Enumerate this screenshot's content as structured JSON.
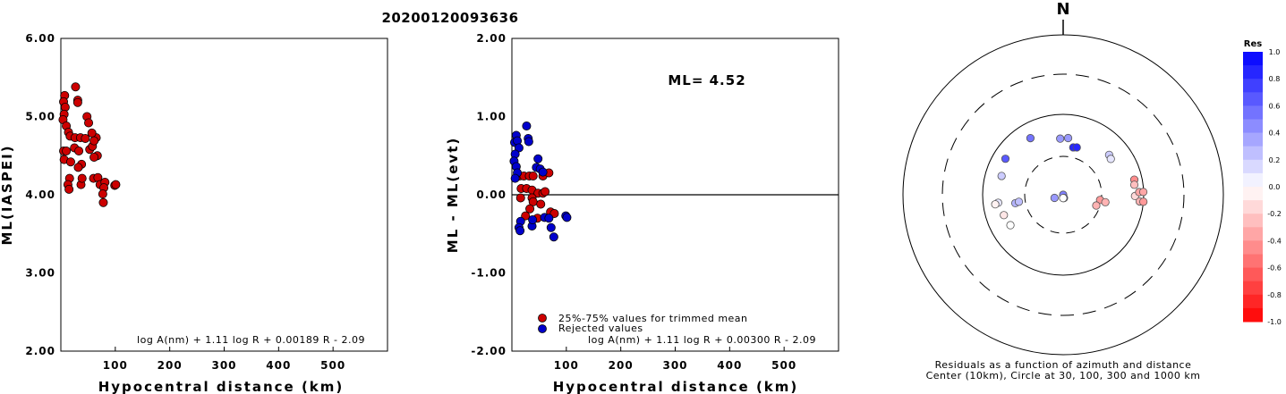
{
  "title": "20200120093636",
  "left_panel": {
    "ylabel": "ML(IASPEI)",
    "xlabel": "Hypocentral distance (km)",
    "formula": "log A(nm) + 1.11 log R + 0.00189 R - 2.09",
    "yticks": [
      "6.00",
      "5.00",
      "4.00",
      "3.00",
      "2.00"
    ],
    "xticks": [
      "100",
      "200",
      "300",
      "400",
      "500"
    ]
  },
  "mid_panel": {
    "ylabel": "ML - ML(evt)",
    "xlabel": "Hypocentral distance (km)",
    "ml_text": "ML= 4.52",
    "legend_trimmed": "25%-75% values for trimmed mean",
    "legend_rejected": "Rejected values",
    "formula": "log A(nm) + 1.11 log R + 0.00300 R - 2.09",
    "yticks": [
      "2.00",
      "1.00",
      "0.00",
      "-1.00",
      "-2.00"
    ],
    "xticks": [
      "100",
      "200",
      "300",
      "400",
      "500"
    ]
  },
  "polar_panel": {
    "north": "N",
    "caption_line1": "Residuals as a function of azimuth and distance",
    "caption_line2": "Center (10km), Circle at 30, 100, 300 and 1000 km"
  },
  "colorbar": {
    "title": "Res",
    "labels": [
      "1.0",
      "0.8",
      "0.6",
      "0.4",
      "0.2",
      "0.0",
      "-0.2",
      "-0.4",
      "-0.6",
      "-0.8",
      "-1.0"
    ]
  },
  "colors": {
    "trimmed": "#cc0000",
    "rejected": "#0000cc",
    "residual_positive": "#0000ff",
    "residual_negative": "#ff0000"
  },
  "chart_data": [
    {
      "type": "scatter",
      "panel": "left",
      "xlim": [
        0,
        600
      ],
      "ylim": [
        2.0,
        6.0
      ],
      "xlabel": "Hypocentral distance (km)",
      "ylabel": "ML(IASPEI)",
      "series": [
        {
          "color": "#cc0000",
          "points": [
            [
              7,
              5.27
            ],
            [
              5,
              5.19
            ],
            [
              8,
              5.12
            ],
            [
              6,
              5.03
            ],
            [
              4,
              4.96
            ],
            [
              10,
              4.88
            ],
            [
              14,
              4.8
            ],
            [
              17,
              4.75
            ],
            [
              26,
              4.73
            ],
            [
              36,
              4.73
            ],
            [
              5,
              4.56
            ],
            [
              10,
              4.56
            ],
            [
              6,
              4.45
            ],
            [
              18,
              4.42
            ],
            [
              25,
              4.6
            ],
            [
              33,
              4.56
            ],
            [
              53,
              4.58
            ],
            [
              58,
              4.62
            ],
            [
              65,
              4.73
            ],
            [
              67,
              4.5
            ],
            [
              61,
              4.48
            ],
            [
              38,
              4.39
            ],
            [
              32,
              4.35
            ],
            [
              16,
              4.21
            ],
            [
              13,
              4.13
            ],
            [
              15,
              4.07
            ],
            [
              37,
              4.13
            ],
            [
              39,
              4.21
            ],
            [
              60,
              4.21
            ],
            [
              68,
              4.22
            ],
            [
              72,
              4.13
            ],
            [
              81,
              4.16
            ],
            [
              79,
              4.09
            ],
            [
              77,
              4.01
            ],
            [
              78,
              3.9
            ],
            [
              99,
              4.12
            ],
            [
              101,
              4.13
            ],
            [
              27,
              5.38
            ],
            [
              31,
              5.21
            ],
            [
              31,
              5.18
            ],
            [
              48,
              5.0
            ],
            [
              51,
              4.92
            ],
            [
              57,
              4.79
            ],
            [
              45,
              4.72
            ],
            [
              61,
              4.69
            ]
          ]
        }
      ]
    },
    {
      "type": "scatter",
      "panel": "middle",
      "xlim": [
        0,
        600
      ],
      "ylim": [
        -2.0,
        2.0
      ],
      "xlabel": "Hypocentral distance (km)",
      "ylabel": "ML - ML(evt)",
      "series": [
        {
          "name": "25%-75% values for trimmed mean",
          "color": "#cc0000",
          "points": [
            [
              14,
              0.24
            ],
            [
              22,
              0.24
            ],
            [
              32,
              0.24
            ],
            [
              39,
              0.24
            ],
            [
              57,
              0.24
            ],
            [
              68,
              0.28
            ],
            [
              17,
              0.08
            ],
            [
              27,
              0.08
            ],
            [
              37,
              0.06
            ],
            [
              48,
              0.02
            ],
            [
              57,
              0.02
            ],
            [
              61,
              0.04
            ],
            [
              16,
              -0.04
            ],
            [
              37,
              -0.04
            ],
            [
              39,
              -0.09
            ],
            [
              53,
              -0.12
            ],
            [
              33,
              -0.18
            ],
            [
              25,
              -0.27
            ],
            [
              47,
              -0.3
            ],
            [
              71,
              -0.22
            ],
            [
              78,
              -0.24
            ]
          ]
        },
        {
          "name": "Rejected values",
          "color": "#0000cc",
          "points": [
            [
              8,
              0.76
            ],
            [
              5,
              0.67
            ],
            [
              10,
              0.69
            ],
            [
              13,
              0.6
            ],
            [
              6,
              0.52
            ],
            [
              4,
              0.43
            ],
            [
              8,
              0.36
            ],
            [
              10,
              0.28
            ],
            [
              6,
              0.21
            ],
            [
              27,
              0.88
            ],
            [
              30,
              0.72
            ],
            [
              31,
              0.68
            ],
            [
              48,
              0.46
            ],
            [
              45,
              0.35
            ],
            [
              52,
              0.33
            ],
            [
              57,
              0.29
            ],
            [
              16,
              -0.34
            ],
            [
              13,
              -0.42
            ],
            [
              15,
              -0.46
            ],
            [
              37,
              -0.4
            ],
            [
              38,
              -0.32
            ],
            [
              60,
              -0.29
            ],
            [
              68,
              -0.3
            ],
            [
              72,
              -0.42
            ],
            [
              77,
              -0.54
            ],
            [
              99,
              -0.27
            ],
            [
              101,
              -0.29
            ]
          ]
        }
      ]
    },
    {
      "type": "scatter",
      "panel": "polar",
      "rings_km": [
        10,
        30,
        100,
        300,
        1000
      ],
      "value_range": [
        -1.0,
        1.0
      ],
      "series": [
        {
          "name": "residual",
          "points": [
            {
              "azimuth": 330,
              "distance_km": 65,
              "res": 0.55
            },
            {
              "azimuth": 302,
              "distance_km": 70,
              "res": 0.65
            },
            {
              "azimuth": 287,
              "distance_km": 63,
              "res": 0.2
            },
            {
              "azimuth": 263,
              "distance_km": 65,
              "res": 0.1
            },
            {
              "azimuth": 262,
              "distance_km": 71,
              "res": -0.05
            },
            {
              "azimuth": 251,
              "distance_km": 60,
              "res": -0.1
            },
            {
              "azimuth": 240,
              "distance_km": 57,
              "res": 0.0
            },
            {
              "azimuth": 260,
              "distance_km": 40,
              "res": 0.3
            },
            {
              "azimuth": 261,
              "distance_km": 36,
              "res": 0.25
            },
            {
              "azimuth": 250,
              "distance_km": 13,
              "res": 0.4
            },
            {
              "azimuth": 210,
              "distance_km": 10,
              "res": 0.5
            },
            {
              "azimuth": 166,
              "distance_km": 11,
              "res": 0.8
            },
            {
              "azimuth": 180,
              "distance_km": 11,
              "res": 0.0
            },
            {
              "azimuth": 357,
              "distance_km": 50,
              "res": 0.4
            },
            {
              "azimuth": 5,
              "distance_km": 51,
              "res": 0.4
            },
            {
              "azimuth": 12,
              "distance_km": 40,
              "res": 0.85
            },
            {
              "azimuth": 16,
              "distance_km": 41,
              "res": 0.85
            },
            {
              "azimuth": 49,
              "distance_km": 57,
              "res": 0.2
            },
            {
              "azimuth": 53,
              "distance_km": 55,
              "res": 0.1
            },
            {
              "azimuth": 98,
              "distance_km": 29,
              "res": -0.4
            },
            {
              "azimuth": 100,
              "distance_km": 34,
              "res": -0.3
            },
            {
              "azimuth": 108,
              "distance_km": 27,
              "res": -0.3
            },
            {
              "azimuth": 78,
              "distance_km": 80,
              "res": -0.45
            },
            {
              "azimuth": 82,
              "distance_km": 78,
              "res": -0.25
            },
            {
              "azimuth": 91,
              "distance_km": 78,
              "res": -0.15
            },
            {
              "azimuth": 95,
              "distance_km": 90,
              "res": -0.3
            },
            {
              "azimuth": 88,
              "distance_km": 88,
              "res": -0.35
            },
            {
              "azimuth": 95,
              "distance_km": 100,
              "res": -0.4
            },
            {
              "azimuth": 88,
              "distance_km": 99,
              "res": -0.35
            }
          ]
        }
      ]
    }
  ]
}
